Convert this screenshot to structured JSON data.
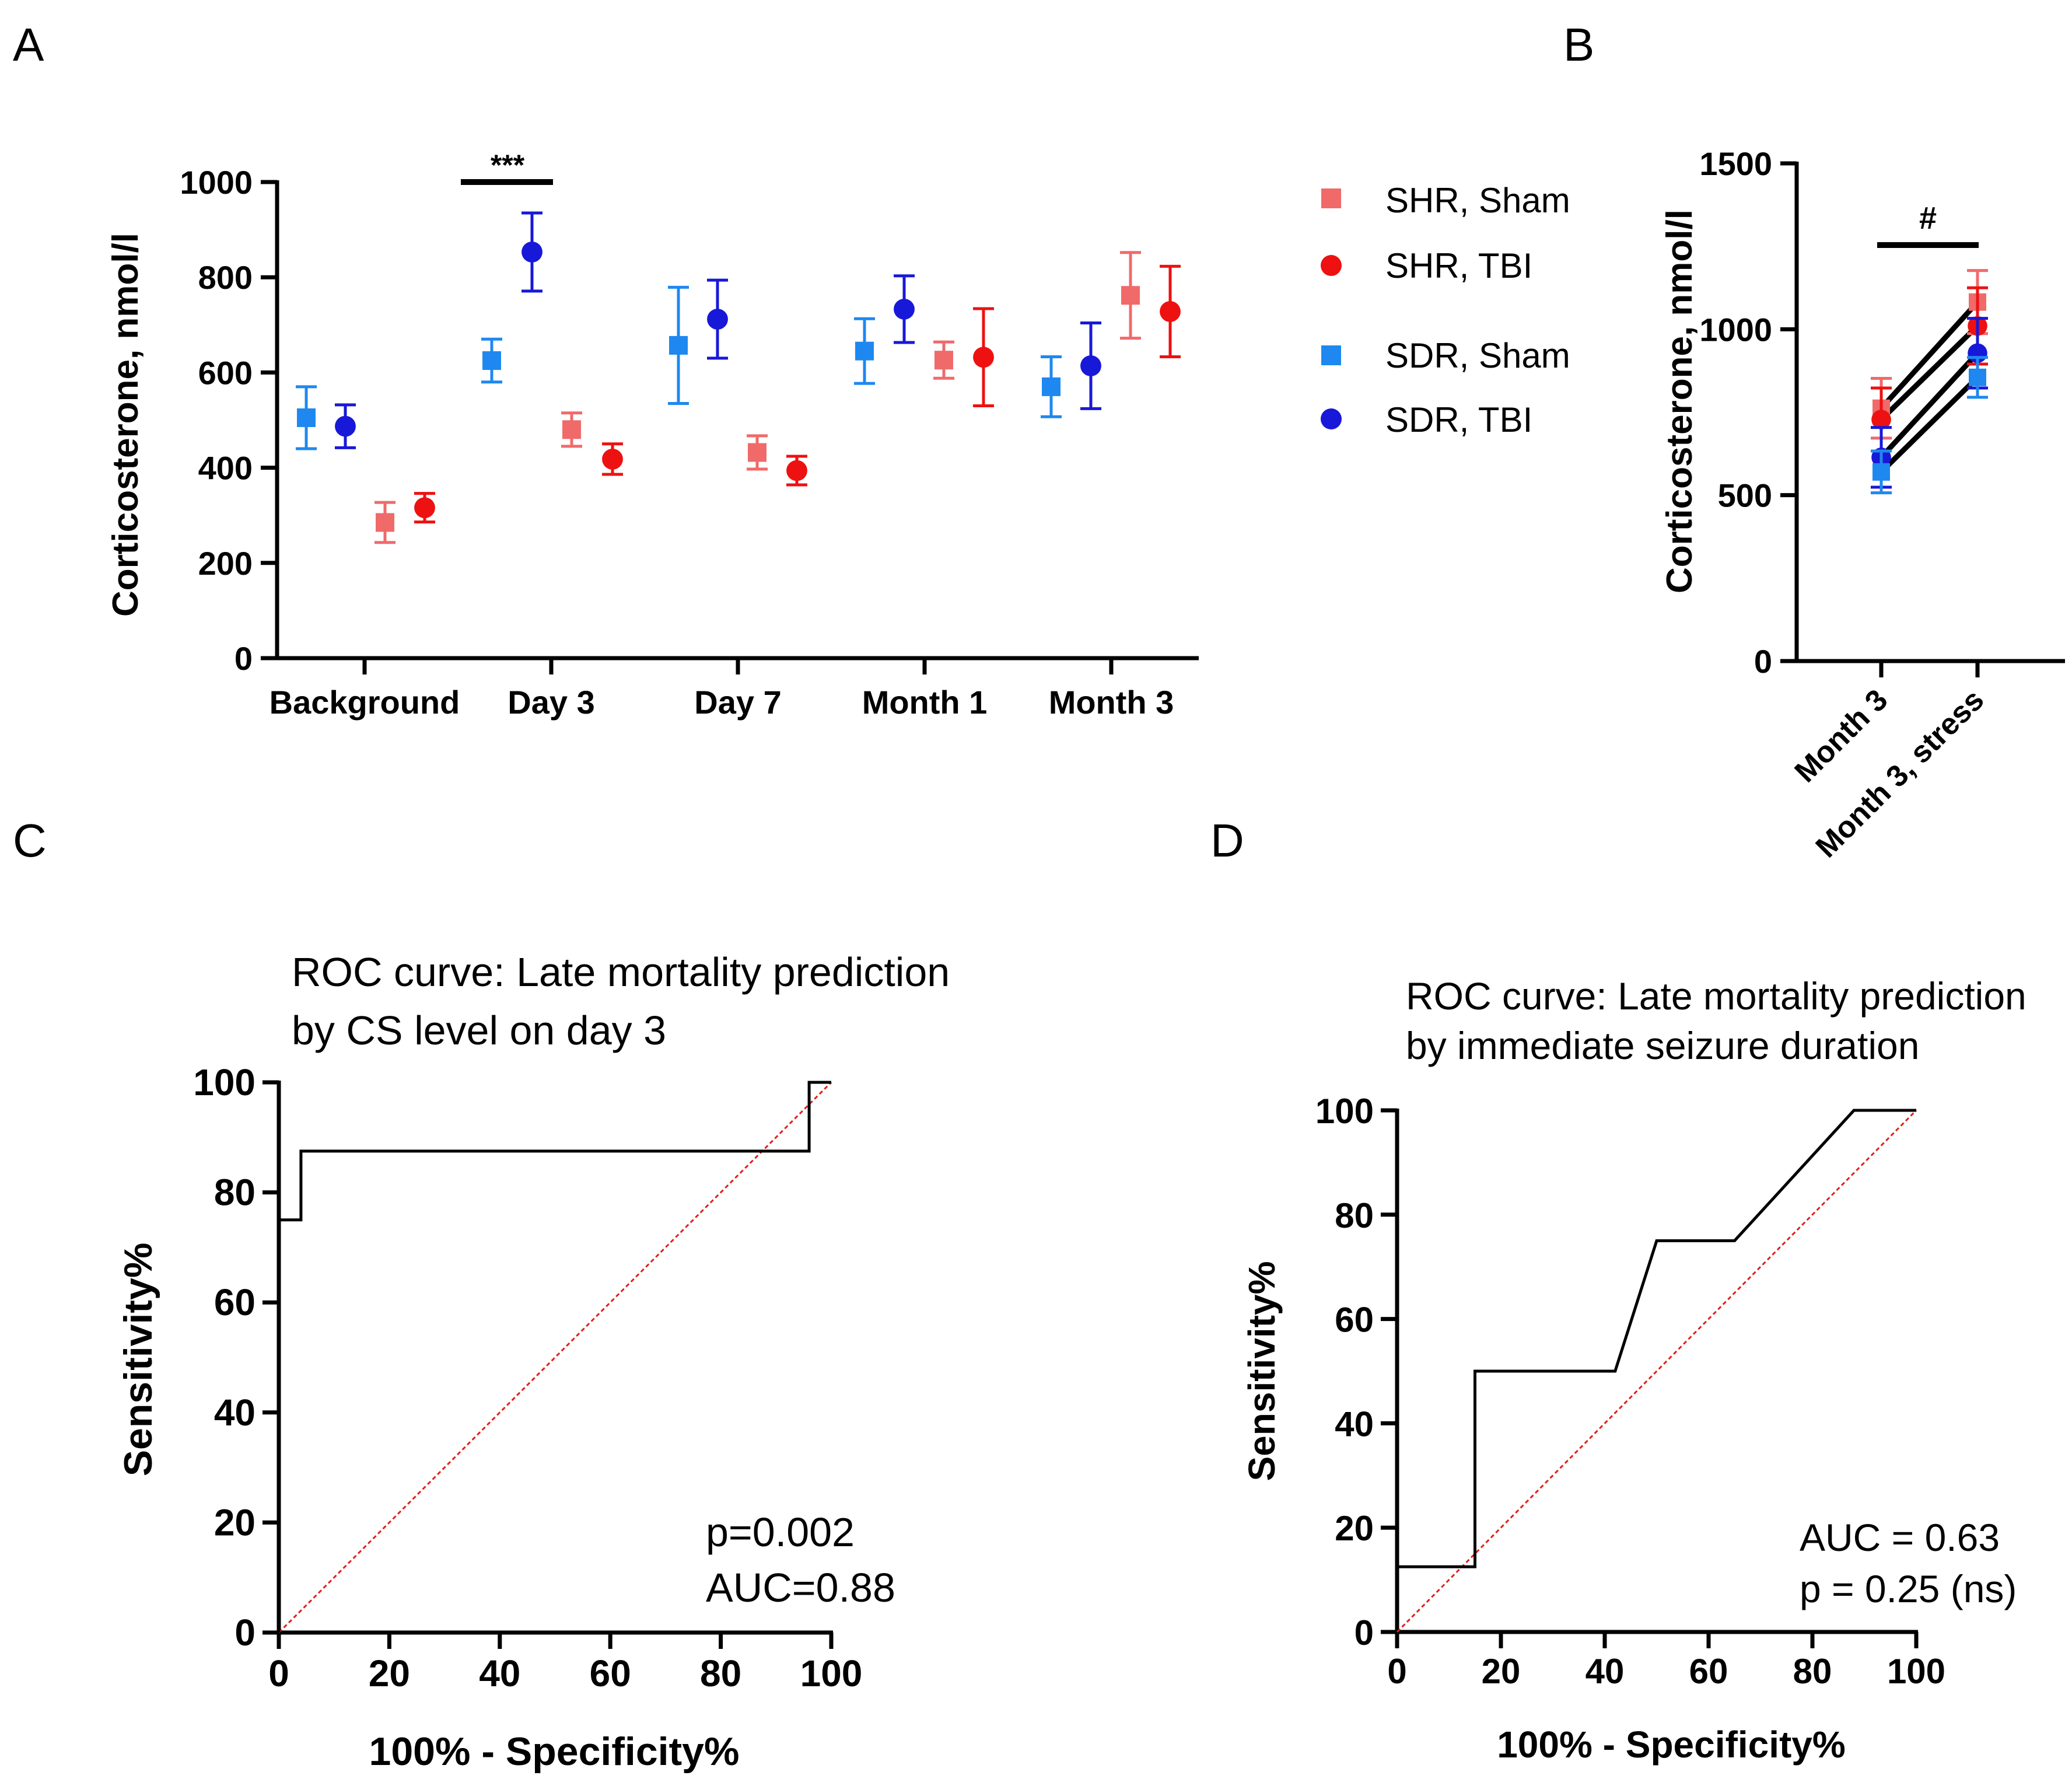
{
  "colors": {
    "shr_sham": "#F06A6A",
    "shr_tbi": "#EE1111",
    "sdr_sham": "#1E88F0",
    "sdr_tbi": "#1818D8",
    "axis": "#000000",
    "diagonal": "#E0201A"
  },
  "legend": {
    "items": [
      {
        "label": "SHR, Sham",
        "series": "shr_sham",
        "marker": "square"
      },
      {
        "label": "SHR, TBI",
        "series": "shr_tbi",
        "marker": "circle"
      },
      {
        "label": "SDR, Sham",
        "series": "sdr_sham",
        "marker": "square"
      },
      {
        "label": "SDR, TBI",
        "series": "sdr_tbi",
        "marker": "circle"
      }
    ]
  },
  "chart_data": [
    {
      "panel": "A",
      "type": "scatter",
      "ylabel": "Corticosterone, nmol/l",
      "ylim": [
        0,
        1000
      ],
      "yticks": [
        "0",
        "200",
        "400",
        "600",
        "800",
        "1000"
      ],
      "categories": [
        "Background",
        "Day 3",
        "Day 7",
        "Month 1",
        "Month 3"
      ],
      "annotation": {
        "text": "***",
        "between": "Day 3 SDR groups"
      },
      "series": [
        {
          "name": "SDR, Sham",
          "key": "sdr_sham",
          "values": [
            505,
            625,
            657,
            645,
            570
          ],
          "err": [
            65,
            45,
            122,
            68,
            63
          ]
        },
        {
          "name": "SDR, TBI",
          "key": "sdr_tbi",
          "values": [
            487,
            853,
            712,
            733,
            614
          ],
          "err": [
            45,
            82,
            82,
            70,
            90
          ]
        },
        {
          "name": "SHR, Sham",
          "key": "shr_sham",
          "values": [
            285,
            480,
            432,
            626,
            762
          ],
          "err": [
            42,
            35,
            35,
            38,
            90
          ]
        },
        {
          "name": "SHR, TBI",
          "key": "shr_tbi",
          "values": [
            316,
            418,
            394,
            632,
            728
          ],
          "err": [
            30,
            32,
            30,
            102,
            95
          ]
        }
      ]
    },
    {
      "panel": "B",
      "type": "line",
      "ylabel": "Corticosterone, nmol/l",
      "ylim": [
        0,
        1500
      ],
      "yticks": [
        "0",
        "500",
        "1000",
        "1500"
      ],
      "categories": [
        "Month 3",
        "Month 3, stress"
      ],
      "annotation": {
        "text": "#"
      },
      "series": [
        {
          "name": "SHR, Sham",
          "key": "shr_sham",
          "values": [
            762,
            1082
          ],
          "err": [
            90,
            95
          ]
        },
        {
          "name": "SHR, TBI",
          "key": "shr_tbi",
          "values": [
            728,
            1010
          ],
          "err": [
            95,
            115
          ]
        },
        {
          "name": "SDR, TBI",
          "key": "sdr_tbi",
          "values": [
            614,
            928
          ],
          "err": [
            90,
            105
          ]
        },
        {
          "name": "SDR, Sham",
          "key": "sdr_sham",
          "values": [
            570,
            855
          ],
          "err": [
            63,
            60
          ]
        }
      ]
    },
    {
      "panel": "C",
      "type": "line",
      "title": [
        "ROC curve: Late mortality prediction",
        "by CS level on day 3"
      ],
      "xlabel": "100% - Specificity%",
      "ylabel": "Sensitivity%",
      "xlim": [
        0,
        100
      ],
      "ylim": [
        0,
        100
      ],
      "xticks": [
        "0",
        "20",
        "40",
        "60",
        "80",
        "100"
      ],
      "yticks": [
        "0",
        "20",
        "40",
        "60",
        "80",
        "100"
      ],
      "roc": {
        "x": [
          0,
          0,
          4,
          4,
          96,
          96,
          100
        ],
        "y": [
          0,
          75,
          75,
          87.5,
          87.5,
          100,
          100
        ]
      },
      "stats": [
        "p=0.002",
        "AUC=0.88"
      ]
    },
    {
      "panel": "D",
      "type": "line",
      "title": [
        "ROC curve: Late mortality prediction",
        "by immediate seizure duration"
      ],
      "xlabel": "100% - Specificity%",
      "ylabel": "Sensitivity%",
      "xlim": [
        0,
        100
      ],
      "ylim": [
        0,
        100
      ],
      "xticks": [
        "0",
        "20",
        "40",
        "60",
        "80",
        "100"
      ],
      "yticks": [
        "0",
        "20",
        "40",
        "60",
        "80",
        "100"
      ],
      "roc": {
        "x": [
          0,
          15,
          15,
          42,
          50,
          65,
          88,
          100
        ],
        "y": [
          12.5,
          12.5,
          50,
          50,
          75,
          75,
          100,
          100
        ]
      },
      "stats": [
        "AUC = 0.63",
        "p = 0.25 (ns)"
      ]
    }
  ],
  "panel_labels": [
    "A",
    "B",
    "C",
    "D"
  ]
}
